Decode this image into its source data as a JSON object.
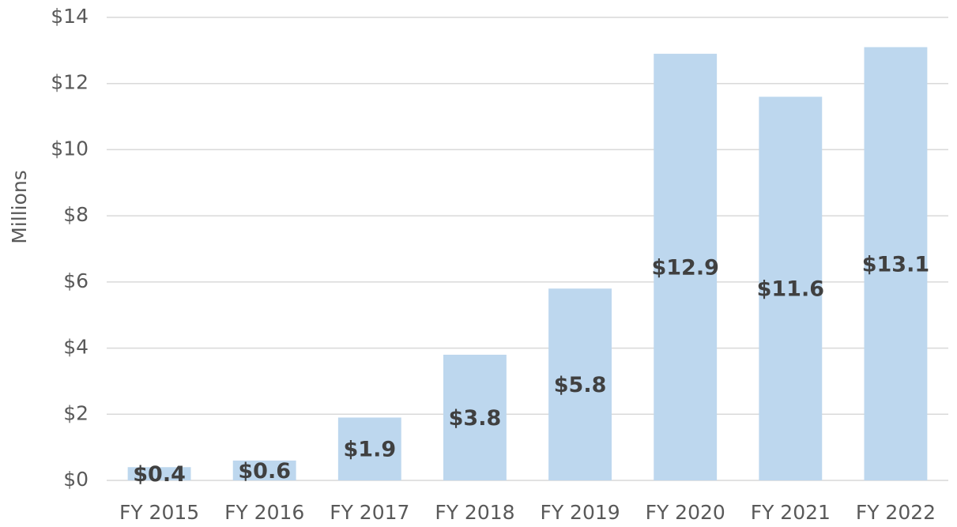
{
  "chart_data": {
    "type": "bar",
    "y_label": "Millions",
    "categories": [
      "FY 2015",
      "FY 2016",
      "FY 2017",
      "FY 2018",
      "FY 2019",
      "FY 2020",
      "FY 2021",
      "FY 2022"
    ],
    "values": [
      0.4,
      0.6,
      1.9,
      3.8,
      5.8,
      12.9,
      11.6,
      13.1
    ],
    "value_labels": [
      "$0.4",
      "$0.6",
      "$1.9",
      "$3.8",
      "$5.8",
      "$12.9",
      "$11.6",
      "$13.1"
    ],
    "color": "#bdd7ee",
    "ylim": [
      0,
      14
    ],
    "yticks": [
      {
        "value": 0,
        "label": "$0"
      },
      {
        "value": 2,
        "label": "$2"
      },
      {
        "value": 4,
        "label": "$4"
      },
      {
        "value": 6,
        "label": "$6"
      },
      {
        "value": 8,
        "label": "$8"
      },
      {
        "value": 10,
        "label": "$10"
      },
      {
        "value": 12,
        "label": "$12"
      },
      {
        "value": 14,
        "label": "$14"
      }
    ],
    "grid": true
  }
}
